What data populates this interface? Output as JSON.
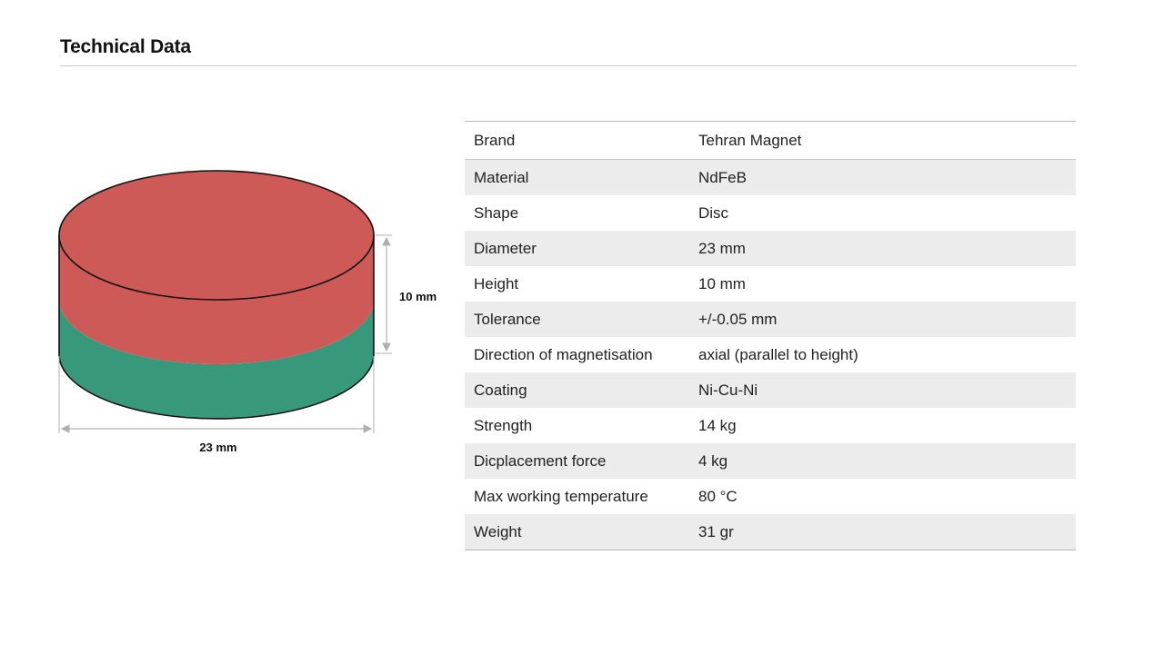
{
  "page": {
    "title": "Technical Data"
  },
  "diagram": {
    "height_label": "10 mm",
    "diameter_label": "23 mm",
    "colors": {
      "north_pole": "#cd5a57",
      "south_pole": "#38987c",
      "outline": "#111111",
      "dimension_line": "#b0b0b0"
    }
  },
  "specs": [
    {
      "label": "Brand",
      "value": "Tehran Magnet"
    },
    {
      "label": "Material",
      "value": "NdFeB"
    },
    {
      "label": "Shape",
      "value": "Disc"
    },
    {
      "label": "Diameter",
      "value": "23 mm"
    },
    {
      "label": "Height",
      "value": "10 mm"
    },
    {
      "label": "Tolerance",
      "value": "+/-0.05 mm"
    },
    {
      "label": "Direction of magnetisation",
      "value": "axial (parallel to height)"
    },
    {
      "label": "Coating",
      "value": "Ni-Cu-Ni"
    },
    {
      "label": "Strength",
      "value": "14 kg"
    },
    {
      "label": "Dicplacement force",
      "value": "4 kg"
    },
    {
      "label": "Max working temperature",
      "value": "80 °C"
    },
    {
      "label": "Weight",
      "value": "31 gr"
    }
  ]
}
